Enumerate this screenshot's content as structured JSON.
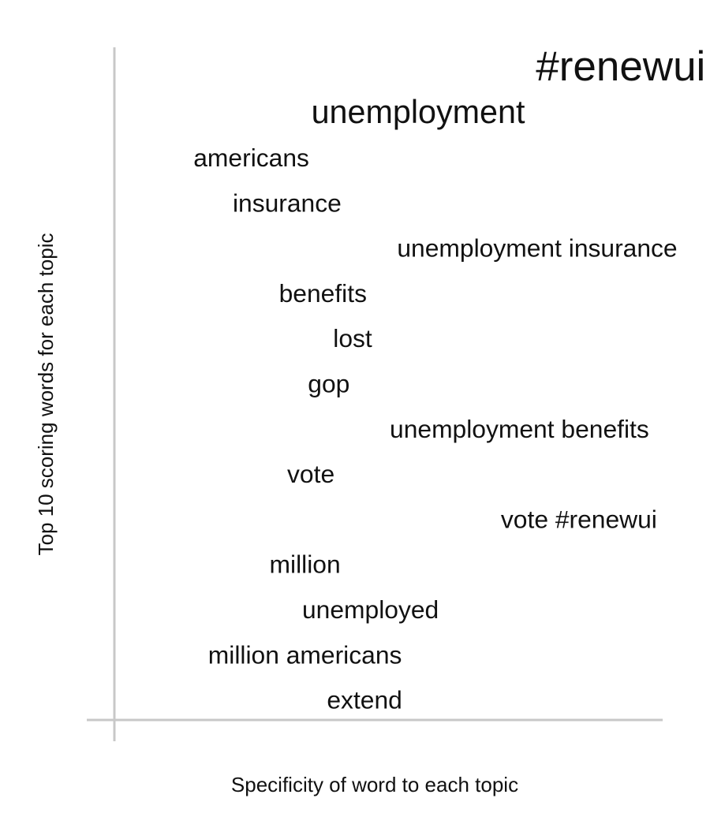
{
  "chart_data": {
    "type": "scatter",
    "title": "",
    "xlabel": "Specificity of word to each topic",
    "ylabel": "Top 10 scoring words for each topic",
    "grid": false,
    "xlim": [
      0,
      1
    ],
    "words": [
      {
        "text": "#renewui",
        "specificity": 0.85,
        "weight": 1.0
      },
      {
        "text": "unemployment",
        "specificity": 0.51,
        "weight": 0.78
      },
      {
        "text": "americans",
        "specificity": 0.23,
        "weight": 0.6
      },
      {
        "text": "insurance",
        "specificity": 0.29,
        "weight": 0.6
      },
      {
        "text": "unemployment insurance",
        "specificity": 0.71,
        "weight": 0.6
      },
      {
        "text": "benefits",
        "specificity": 0.35,
        "weight": 0.6
      },
      {
        "text": "lost",
        "specificity": 0.4,
        "weight": 0.6
      },
      {
        "text": "gop",
        "specificity": 0.36,
        "weight": 0.6
      },
      {
        "text": "unemployment benefits",
        "specificity": 0.68,
        "weight": 0.6
      },
      {
        "text": "vote",
        "specificity": 0.33,
        "weight": 0.6
      },
      {
        "text": "vote #renewui",
        "specificity": 0.78,
        "weight": 0.6
      },
      {
        "text": "million",
        "specificity": 0.32,
        "weight": 0.6
      },
      {
        "text": "unemployed",
        "specificity": 0.43,
        "weight": 0.6
      },
      {
        "text": "million americans",
        "specificity": 0.32,
        "weight": 0.6
      },
      {
        "text": "extend",
        "specificity": 0.42,
        "weight": 0.6
      }
    ]
  },
  "colors": {
    "axis": "#c8c8c8",
    "text": "#111111"
  }
}
